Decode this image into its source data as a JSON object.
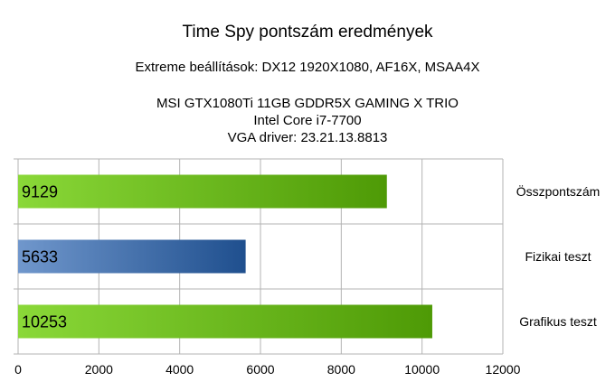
{
  "chart_data": {
    "type": "bar",
    "orientation": "horizontal",
    "title": "Time Spy pontszám eredmények",
    "subtitle": "Extreme beállítások: DX12 1920X1080, AF16X, MSAA4X",
    "info_lines": [
      "MSI GTX1080Ti 11GB GDDR5X GAMING X TRIO",
      "Intel Core i7-7700",
      "VGA driver: 23.21.13.8813"
    ],
    "categories": [
      "Összpontszám",
      "Fizikai teszt",
      "Grafikus teszt"
    ],
    "values": [
      9129,
      5633,
      10253
    ],
    "value_labels": [
      "9129",
      "5633",
      "10253"
    ],
    "bar_colors": [
      [
        "#8ad838",
        "#4e9a06"
      ],
      [
        "#7097cc",
        "#1f4f8e"
      ],
      [
        "#8ad838",
        "#4e9a06"
      ]
    ],
    "xlim": [
      0,
      12000
    ],
    "x_ticks": [
      0,
      2000,
      4000,
      6000,
      8000,
      10000,
      12000
    ],
    "x_tick_labels": [
      "0",
      "2000",
      "4000",
      "6000",
      "8000",
      "10000",
      "12000"
    ],
    "xlabel": "",
    "ylabel": "",
    "grid": "vertical",
    "category_label_position": "right"
  }
}
